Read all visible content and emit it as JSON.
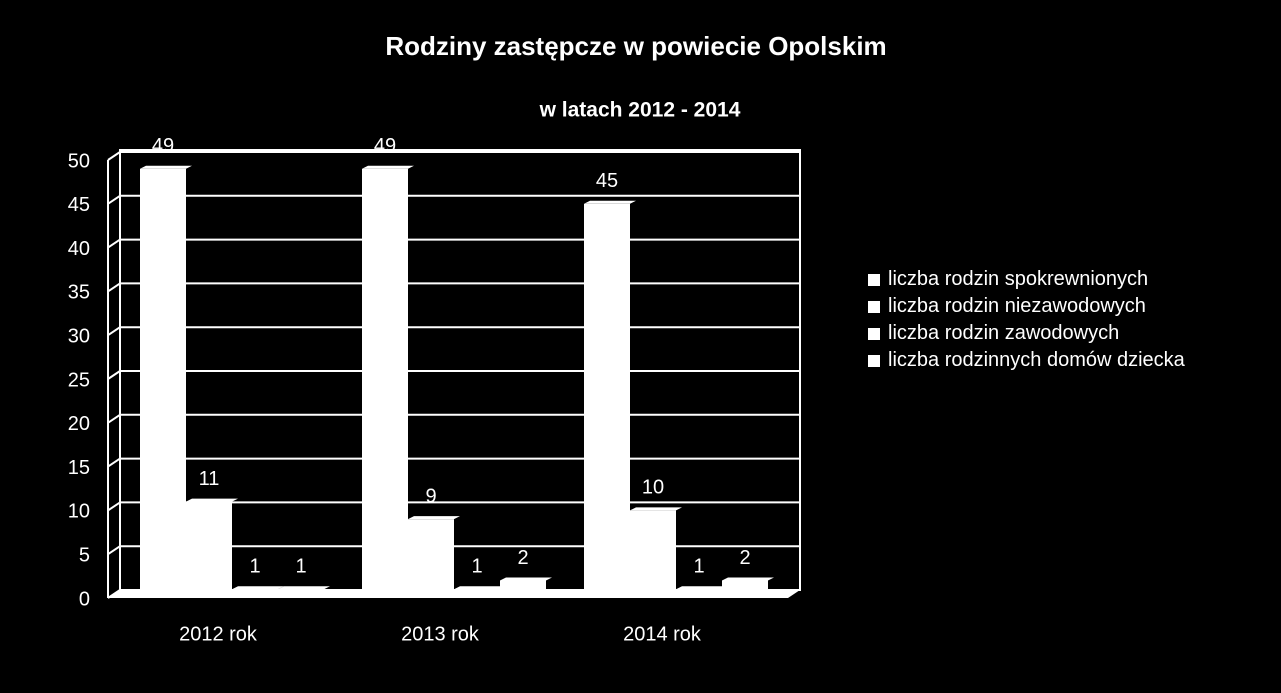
{
  "chart_data": {
    "type": "bar",
    "title": "Rodziny zastępcze w powiecie Opolskim",
    "subtitle": "w latach 2012 - 2014",
    "categories": [
      "2012 rok",
      "2013 rok",
      "2014 rok"
    ],
    "series": [
      {
        "name": "liczba rodzin spokrewnionych",
        "color": "#ffffff",
        "values": [
          49,
          49,
          45
        ]
      },
      {
        "name": "liczba rodzin niezawodowych",
        "color": "#ffffff",
        "values": [
          11,
          9,
          10
        ]
      },
      {
        "name": "liczba rodzin zawodowych",
        "color": "#ffffff",
        "values": [
          1,
          1,
          1
        ]
      },
      {
        "name": "liczba rodzinnych domów dziecka",
        "color": "#ffffff",
        "values": [
          1,
          2,
          2
        ]
      }
    ],
    "ylim": [
      0,
      50
    ],
    "yticks": [
      0,
      5,
      10,
      15,
      20,
      25,
      30,
      35,
      40,
      45,
      50
    ],
    "grid": true
  }
}
